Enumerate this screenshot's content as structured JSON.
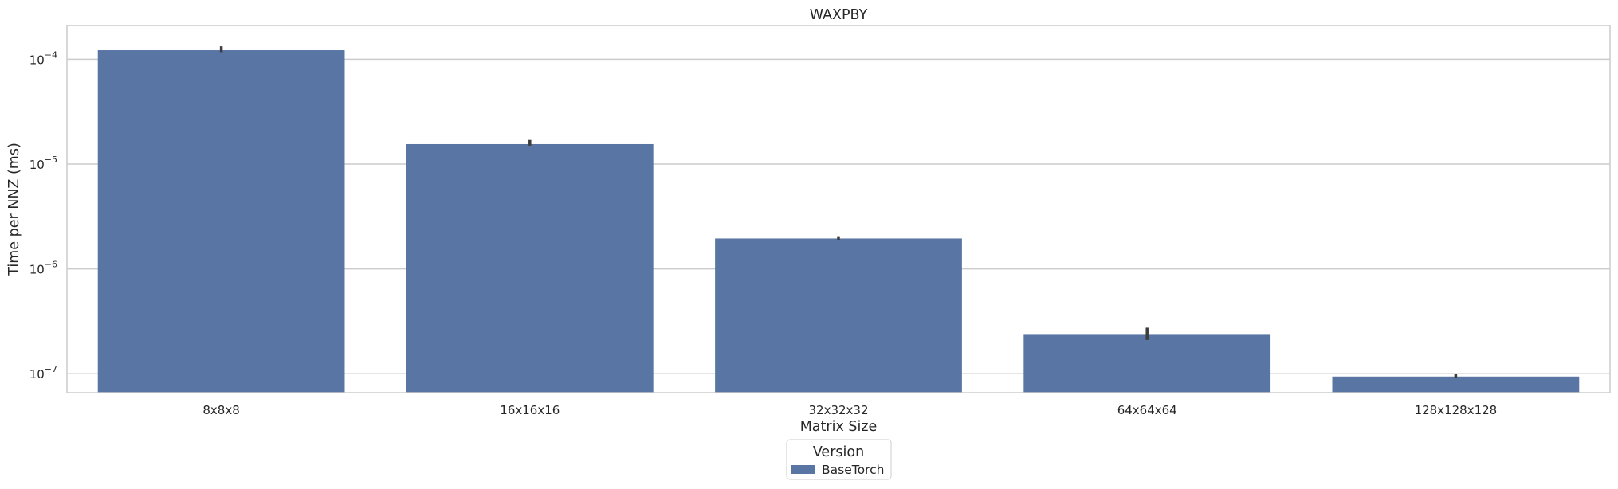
{
  "chart_data": {
    "type": "bar",
    "title": "WAXPBY",
    "xlabel": "Matrix Size",
    "ylabel": "Time per NNZ (ms)",
    "y_scale": "log",
    "ylim": [
      6.6e-08,
      0.00021
    ],
    "y_ticks": [
      {
        "value": 0.0001,
        "mantissa": "10",
        "exponent": "−4"
      },
      {
        "value": 1e-05,
        "mantissa": "10",
        "exponent": "−5"
      },
      {
        "value": 1e-06,
        "mantissa": "10",
        "exponent": "−6"
      },
      {
        "value": 1e-07,
        "mantissa": "10",
        "exponent": "−7"
      }
    ],
    "categories": [
      "8x8x8",
      "16x16x16",
      "32x32x32",
      "64x64x64",
      "128x128x128"
    ],
    "series": [
      {
        "name": "BaseTorch",
        "color": "#5875a4",
        "values": [
          0.000122,
          1.55e-05,
          1.95e-06,
          2.35e-07,
          9.4e-08
        ],
        "error_low": [
          0.000117,
          1.5e-05,
          1.9e-06,
          2.1e-07,
          9.2e-08
        ],
        "error_high": [
          0.000133,
          1.7e-05,
          2.05e-06,
          2.75e-07,
          9.9e-08
        ]
      }
    ],
    "grid": true,
    "legend": {
      "title": "Version",
      "placement": "bottom-center"
    }
  }
}
